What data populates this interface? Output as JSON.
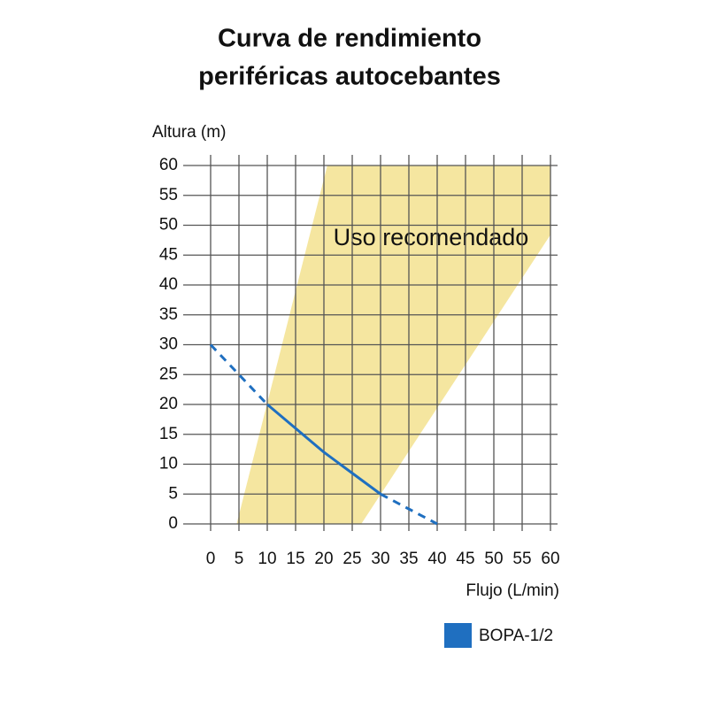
{
  "chart_data": {
    "type": "line",
    "title": [
      "Curva de rendimiento",
      "periféricas autocebantes"
    ],
    "y_label": "Altura (m)",
    "x_label": "Flujo (L/min)",
    "xlim": [
      0,
      60
    ],
    "ylim": [
      0,
      60
    ],
    "xticks": [
      0,
      5,
      10,
      15,
      20,
      25,
      30,
      35,
      40,
      45,
      50,
      55,
      60
    ],
    "yticks": [
      0,
      5,
      10,
      15,
      20,
      25,
      30,
      35,
      40,
      45,
      50,
      55,
      60
    ],
    "grid": true,
    "region": {
      "label": "Uso recomendado",
      "color": "#f5e6a0",
      "x": [
        4.6,
        20.6,
        60,
        60,
        26.6
      ],
      "y": [
        0,
        60,
        60,
        48.4,
        0
      ]
    },
    "x": [
      0,
      5,
      10,
      15,
      20,
      25,
      30,
      35,
      40
    ],
    "solid_range": [
      10,
      30
    ],
    "series": [
      {
        "name": "BOPA-1/2",
        "color": "#1f6fc0",
        "values": [
          30,
          25,
          20,
          16,
          12,
          8.5,
          5,
          2.5,
          0
        ]
      }
    ]
  }
}
